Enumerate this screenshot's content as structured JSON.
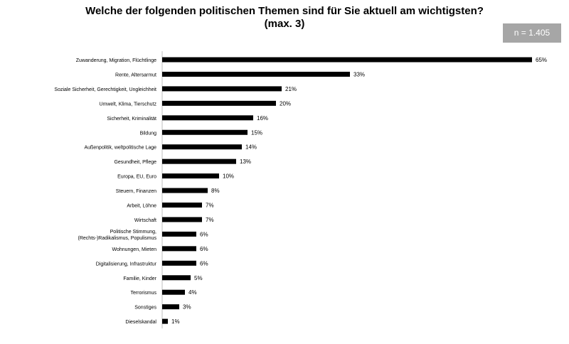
{
  "title_line1": "Welche der folgenden politischen Themen sind für Sie aktuell am wichtigsten?",
  "title_line2": "(max. 3)",
  "sample_badge": "n = 1.405",
  "colors": {
    "bar": "#000000",
    "badge_bg": "#a6a6a6",
    "badge_text": "#ffffff",
    "axis": "#bfbfbf"
  },
  "chart_data": {
    "type": "bar",
    "orientation": "horizontal",
    "categories": [
      "Zuwanderung, Migration, Flüchtlinge",
      "Rente, Altersarmut",
      "Soziale Sicherheit, Gerechtigkeit, Ungleichheit",
      "Umwelt, Klima, Tierschutz",
      "Sicherheit, Kriminalität",
      "Bildung",
      "Außenpolitik, weltpolitische Lage",
      "Gesundheit, Pflege",
      "Europa, EU, Euro",
      "Steuern, Finanzen",
      "Arbeit, Löhne",
      "Wirtschaft",
      "Politische Stimmung, (Rechts-)Radikalismus, Populismus",
      "Wohnungen, Mieten",
      "Digitalisierung, Infrastruktur",
      "Familie, Kinder",
      "Terrorismus",
      "Sonstiges",
      "Dieselskandal"
    ],
    "category_lines": [
      [
        "Zuwanderung, Migration, Flüchtlinge"
      ],
      [
        "Rente, Altersarmut"
      ],
      [
        "Soziale Sicherheit, Gerechtigkeit, Ungleichheit"
      ],
      [
        "Umwelt, Klima, Tierschutz"
      ],
      [
        "Sicherheit, Kriminalität"
      ],
      [
        "Bildung"
      ],
      [
        "Außenpolitik, weltpolitische Lage"
      ],
      [
        "Gesundheit, Pflege"
      ],
      [
        "Europa, EU, Euro"
      ],
      [
        "Steuern, Finanzen"
      ],
      [
        "Arbeit, Löhne"
      ],
      [
        "Wirtschaft"
      ],
      [
        "Politische Stimmung,",
        "(Rechts-)Radikalismus, Populismus"
      ],
      [
        "Wohnungen, Mieten"
      ],
      [
        "Digitalisierung, Infrastruktur"
      ],
      [
        "Familie, Kinder"
      ],
      [
        "Terrorismus"
      ],
      [
        "Sonstiges"
      ],
      [
        "Dieselskandal"
      ]
    ],
    "values": [
      65,
      33,
      21,
      20,
      16,
      15,
      14,
      13,
      10,
      8,
      7,
      7,
      6,
      6,
      6,
      5,
      4,
      3,
      1
    ],
    "data_labels": [
      "65%",
      "33%",
      "21%",
      "20%",
      "16%",
      "15%",
      "14%",
      "13%",
      "10%",
      "8%",
      "7%",
      "7%",
      "6%",
      "6%",
      "6%",
      "5%",
      "4%",
      "3%",
      "1%"
    ],
    "xlim": [
      0,
      65
    ],
    "grid": false,
    "legend": "none"
  }
}
